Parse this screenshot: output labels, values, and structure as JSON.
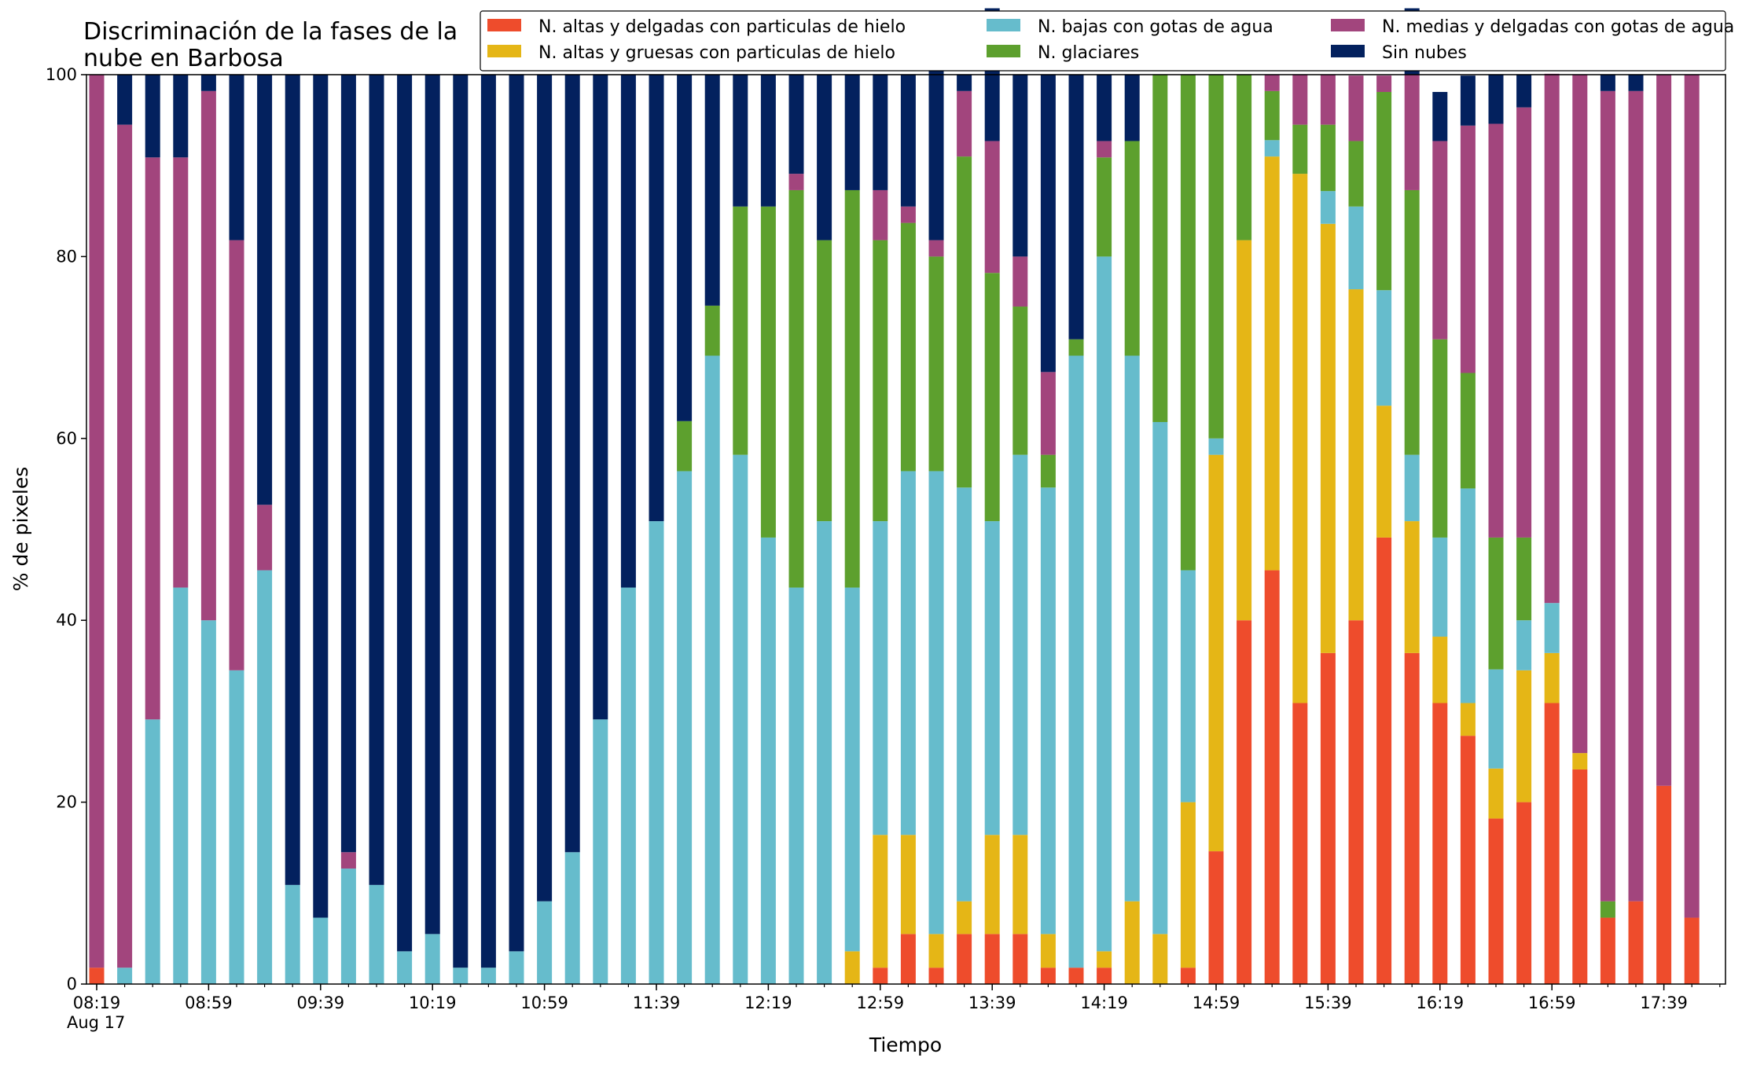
{
  "chart_data": {
    "type": "bar",
    "stacked": true,
    "title": "Discriminación de la fases de la\nnube en Barbosa",
    "xlabel": "Tiempo",
    "ylabel": "% de pixeles",
    "ylim": [
      0,
      100
    ],
    "yticks": [
      0,
      20,
      40,
      60,
      80,
      100
    ],
    "grid": false,
    "legend_position": "top-right",
    "categories": [
      "08:19",
      "08:29",
      "08:39",
      "08:49",
      "08:59",
      "09:09",
      "09:19",
      "09:29",
      "09:39",
      "09:49",
      "09:59",
      "10:09",
      "10:19",
      "10:29",
      "10:39",
      "10:49",
      "10:59",
      "11:09",
      "11:19",
      "11:29",
      "11:39",
      "11:49",
      "11:59",
      "12:09",
      "12:19",
      "12:29",
      "12:39",
      "12:49",
      "12:59",
      "13:09",
      "13:19",
      "13:29",
      "13:39",
      "13:49",
      "13:59",
      "14:09",
      "14:19",
      "14:29",
      "14:39",
      "14:49",
      "14:59",
      "15:09",
      "15:19",
      "15:29",
      "15:39",
      "15:49",
      "15:59",
      "16:09",
      "16:19",
      "16:29",
      "16:39",
      "16:49",
      "16:59",
      "17:09",
      "17:19",
      "17:29",
      "17:39",
      "17:49"
    ],
    "xticks": [
      {
        "index": 0,
        "label": "08:19",
        "sublabel": "Aug 17"
      },
      {
        "index": 4,
        "label": "08:59"
      },
      {
        "index": 8,
        "label": "09:39"
      },
      {
        "index": 12,
        "label": "10:19"
      },
      {
        "index": 16,
        "label": "10:59"
      },
      {
        "index": 20,
        "label": "11:39"
      },
      {
        "index": 24,
        "label": "12:19"
      },
      {
        "index": 28,
        "label": "12:59"
      },
      {
        "index": 32,
        "label": "13:39"
      },
      {
        "index": 36,
        "label": "14:19"
      },
      {
        "index": 40,
        "label": "14:59"
      },
      {
        "index": 44,
        "label": "15:39"
      },
      {
        "index": 48,
        "label": "16:19"
      },
      {
        "index": 52,
        "label": "16:59"
      },
      {
        "index": 56,
        "label": "17:39"
      }
    ],
    "series": [
      {
        "name": "N. altas y delgadas con particulas de hielo",
        "color": "#EE4C2C",
        "values": [
          1.8,
          0,
          0,
          0,
          0,
          0,
          0,
          0,
          0,
          0,
          0,
          0,
          0,
          0,
          0,
          0,
          0,
          0,
          0,
          0,
          0,
          0,
          0,
          0,
          0,
          0,
          0,
          0,
          1.8,
          5.5,
          1.8,
          5.5,
          5.5,
          5.5,
          1.8,
          1.8,
          1.8,
          0,
          0,
          1.8,
          14.6,
          40,
          45.5,
          30.9,
          36.4,
          40,
          49.1,
          36.4,
          30.9,
          27.3,
          18.2,
          20,
          30.9,
          23.6,
          7.3,
          9.1,
          21.8,
          7.3
        ]
      },
      {
        "name": "N. altas y gruesas con particulas de hielo",
        "color": "#E5B616",
        "values": [
          0,
          0,
          0,
          0,
          0,
          0,
          0,
          0,
          0,
          0,
          0,
          0,
          0,
          0,
          0,
          0,
          0,
          0,
          0,
          0,
          0,
          0,
          0,
          0,
          0,
          0,
          0,
          3.6,
          14.6,
          10.9,
          3.7,
          3.6,
          10.9,
          10.9,
          3.7,
          0,
          1.8,
          9.1,
          5.5,
          18.2,
          43.6,
          41.8,
          45.5,
          58.2,
          47.2,
          36.4,
          14.5,
          14.5,
          7.3,
          3.6,
          5.5,
          14.5,
          5.5,
          1.8,
          0,
          0,
          0,
          0
        ]
      },
      {
        "name": "N. bajas con gotas de agua",
        "color": "#66BCCC",
        "values": [
          0,
          1.8,
          29.1,
          43.6,
          40,
          34.5,
          45.5,
          10.9,
          7.3,
          12.7,
          10.9,
          3.6,
          5.5,
          1.8,
          1.8,
          3.6,
          9.1,
          14.5,
          29.1,
          43.6,
          50.9,
          56.4,
          69.1,
          58.2,
          49.1,
          43.6,
          50.9,
          40,
          34.5,
          40.0,
          50.9,
          45.5,
          34.5,
          41.8,
          49.1,
          67.3,
          76.4,
          60,
          56.3,
          25.5,
          1.8,
          0,
          1.8,
          0,
          3.6,
          9.1,
          12.7,
          7.3,
          10.9,
          23.6,
          10.9,
          5.5,
          5.5,
          0,
          0,
          0,
          0,
          0
        ]
      },
      {
        "name": "N. glaciares",
        "color": "#5DA02E",
        "values": [
          0,
          0,
          0,
          0,
          0,
          0,
          0,
          0,
          0,
          0,
          0,
          0,
          0,
          0,
          0,
          0,
          0,
          0,
          0,
          0,
          0,
          5.5,
          5.5,
          27.3,
          36.4,
          43.7,
          30.9,
          43.7,
          30.9,
          27.3,
          23.6,
          36.4,
          27.3,
          16.3,
          3.6,
          1.8,
          10.9,
          23.6,
          38.2,
          54.5,
          40,
          18.2,
          5.4,
          5.4,
          7.3,
          7.2,
          21.8,
          29.1,
          21.8,
          12.7,
          14.5,
          9.1,
          0,
          0,
          1.8,
          0,
          0,
          0
        ]
      },
      {
        "name": "N. medias y delgadas con gotas de agua",
        "color": "#A2457D",
        "values": [
          98.2,
          92.7,
          61.8,
          47.3,
          58.2,
          47.3,
          7.2,
          0,
          0,
          1.8,
          0,
          0,
          0,
          0,
          0,
          0,
          0,
          0,
          0,
          0,
          0,
          0,
          0,
          0,
          0,
          1.8,
          0,
          0,
          5.5,
          1.8,
          1.8,
          7.2,
          14.5,
          5.5,
          9.1,
          0,
          1.8,
          0,
          0,
          0,
          0,
          0,
          1.8,
          5.5,
          5.5,
          7.2,
          1.8,
          12.7,
          21.8,
          27.2,
          45.5,
          47.3,
          58.2,
          74.6,
          89.1,
          89.1,
          78.2,
          92.7
        ]
      },
      {
        "name": "Sin nubes",
        "color": "#03215E",
        "values": [
          0,
          5.5,
          9.1,
          9.1,
          1.8,
          18.2,
          47.3,
          89.1,
          92.7,
          85.5,
          89.1,
          96.4,
          94.5,
          98.2,
          98.2,
          96.4,
          90.9,
          85.5,
          70.9,
          56.4,
          49.1,
          38.1,
          25.4,
          14.5,
          14.5,
          10.9,
          18.2,
          12.7,
          12.7,
          14.5,
          21.8,
          1.8,
          14.6,
          20.0,
          32.7,
          29.1,
          7.3,
          7.3,
          0,
          0,
          0,
          0,
          0,
          0,
          0,
          0,
          0,
          7.3,
          5.4,
          5.5,
          5.4,
          3.6,
          0,
          0,
          1.8,
          1.8,
          0,
          0
        ]
      }
    ]
  }
}
